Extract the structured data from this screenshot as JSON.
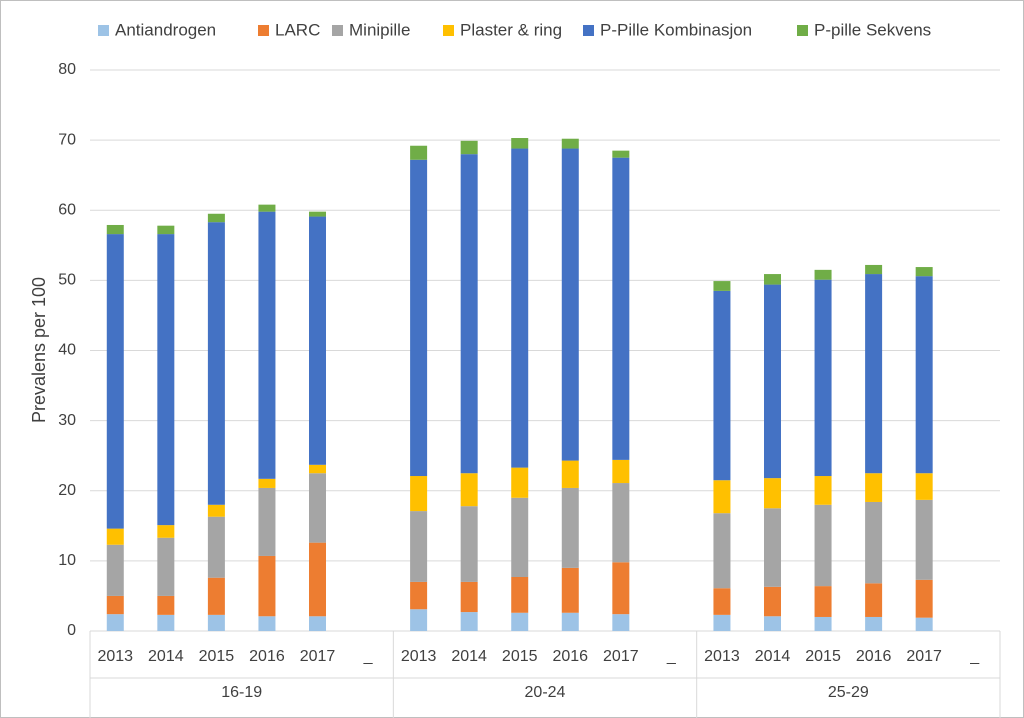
{
  "chart_data": {
    "type": "stacked-bar",
    "y_label": "Prevalens per 100",
    "categories": [
      "2013",
      "2014",
      "2015",
      "2016",
      "2017",
      "_",
      "2013",
      "2014",
      "2015",
      "2016",
      "2017",
      "_",
      "2013",
      "2014",
      "2015",
      "2016",
      "2017",
      "_"
    ],
    "group_labels": [
      "16-19",
      "20-24",
      "25-29"
    ],
    "ylim": [
      0,
      80
    ],
    "yticks": [
      0,
      10,
      20,
      30,
      40,
      50,
      60,
      70,
      80
    ],
    "grid": true,
    "legend": "top",
    "series": [
      {
        "name": "Antiandrogen",
        "color": "#9dc3e6",
        "values": [
          2.4,
          2.3,
          2.3,
          2.1,
          2.1,
          null,
          3.1,
          2.7,
          2.6,
          2.6,
          2.4,
          null,
          2.3,
          2.1,
          2.0,
          2.0,
          1.9,
          null
        ]
      },
      {
        "name": "LARC",
        "color": "#ed7d31",
        "values": [
          2.6,
          2.7,
          5.3,
          8.6,
          10.5,
          null,
          3.9,
          4.3,
          5.1,
          6.4,
          7.4,
          null,
          3.8,
          4.2,
          4.4,
          4.8,
          5.4,
          null
        ]
      },
      {
        "name": "Minipille",
        "color": "#a5a5a5",
        "values": [
          7.3,
          8.3,
          8.7,
          9.7,
          9.9,
          null,
          10.1,
          10.8,
          11.3,
          11.4,
          11.3,
          null,
          10.7,
          11.2,
          11.6,
          11.6,
          11.4,
          null
        ]
      },
      {
        "name": "Plaster & ring",
        "color": "#ffc000",
        "values": [
          2.3,
          1.8,
          1.7,
          1.3,
          1.2,
          null,
          5.0,
          4.7,
          4.3,
          3.9,
          3.3,
          null,
          4.7,
          4.3,
          4.1,
          4.1,
          3.8,
          null
        ]
      },
      {
        "name": "P-Pille Kombinasjon",
        "color": "#4472c4",
        "values": [
          42.0,
          41.5,
          40.3,
          38.1,
          35.4,
          null,
          45.1,
          45.5,
          45.5,
          44.5,
          43.1,
          null,
          27.0,
          27.6,
          28.0,
          28.4,
          28.1,
          null
        ]
      },
      {
        "name": "P-pille Sekvens",
        "color": "#70ad47",
        "values": [
          1.3,
          1.2,
          1.2,
          1.0,
          0.7,
          null,
          2.0,
          1.9,
          1.5,
          1.4,
          1.0,
          null,
          1.4,
          1.5,
          1.4,
          1.3,
          1.3,
          null
        ]
      }
    ]
  }
}
